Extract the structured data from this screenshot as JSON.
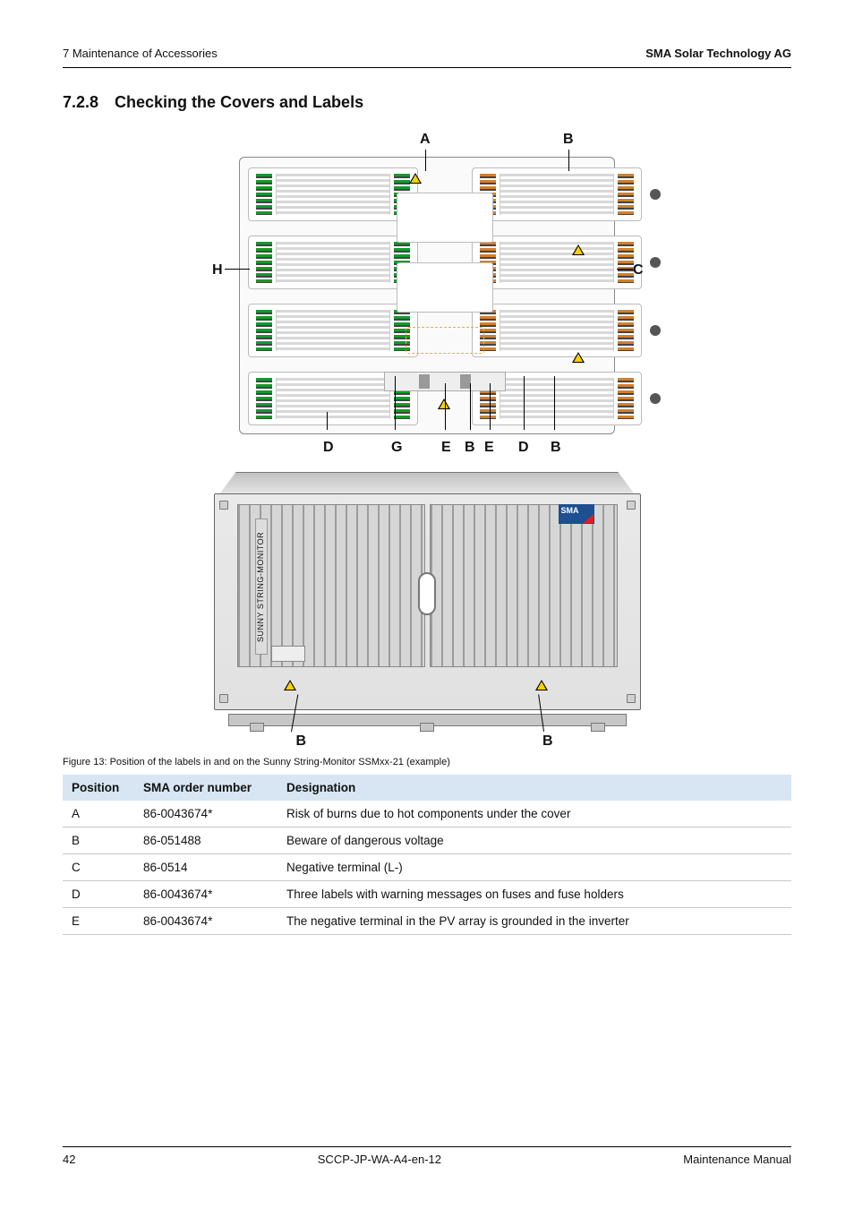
{
  "header": {
    "left": "7  Maintenance of Accessories",
    "right": "SMA Solar Technology AG"
  },
  "section": {
    "number": "7.2.8",
    "title": "Checking the Covers and Labels"
  },
  "diagram": {
    "labels": {
      "A": "A",
      "B": "B",
      "C": "C",
      "D": "D",
      "E": "E",
      "G": "G",
      "H": "H"
    }
  },
  "enclosure": {
    "sma": "SMA",
    "side_text": "SUNNY STRING-MONITOR",
    "labelB": "B"
  },
  "figure_caption": "Figure 13:  Position of the labels in and on the Sunny String-Monitor SSMxx-21 (example)",
  "table": {
    "columns": [
      "Position",
      "SMA order number",
      "Designation"
    ],
    "rows": [
      [
        "A",
        "86-0043674*",
        "Risk of burns due to hot components under the cover"
      ],
      [
        "B",
        "86-051488",
        "Beware of dangerous voltage"
      ],
      [
        "C",
        "86-0514",
        "Negative terminal (L-)"
      ],
      [
        "D",
        "86-0043674*",
        "Three labels with warning messages on fuses and fuse holders"
      ],
      [
        "E",
        "86-0043674*",
        "The negative terminal in the PV array is grounded in the inverter"
      ]
    ]
  },
  "footer": {
    "page": "42",
    "doc": "SCCP-JP-WA-A4-en-12",
    "right": "Maintenance Manual"
  },
  "colors": {
    "header_bg": "#d7e6f2",
    "row_border": "#c8c8c8",
    "warn_yellow": "#ffd000",
    "terminal_green": "#139a2a",
    "terminal_brown": "#d08030",
    "sma_blue": "#1d4f91",
    "sma_red": "#d62020"
  }
}
